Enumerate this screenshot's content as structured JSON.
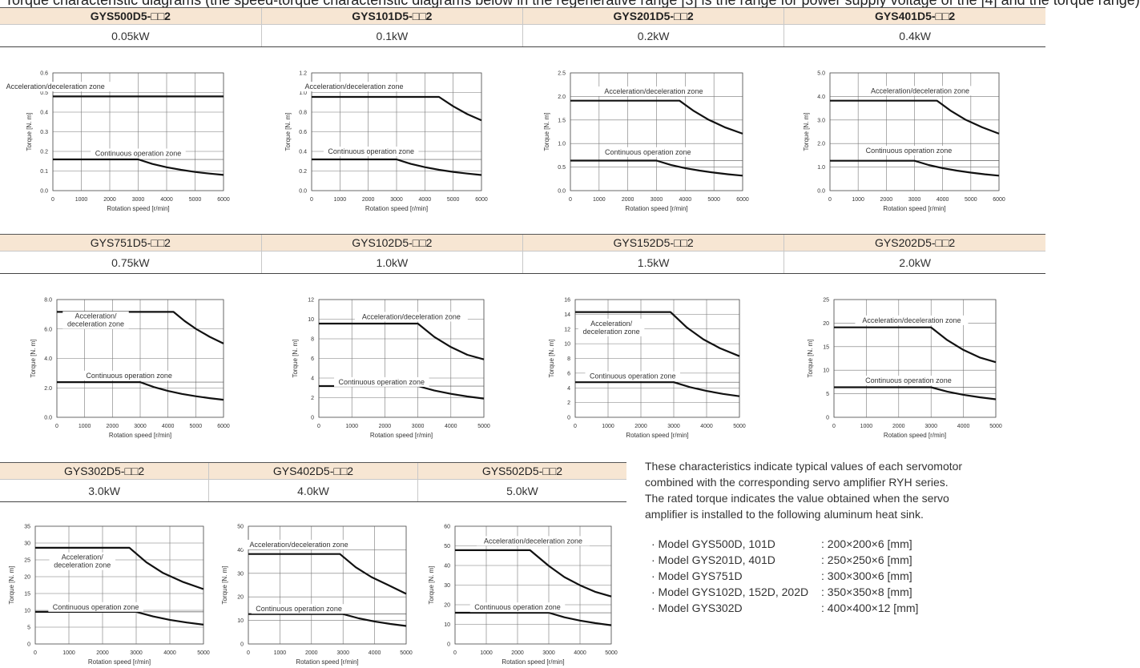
{
  "page_title": "Torque characteristic diagrams (the speed-torque characteristic diagrams below in the regenerative range [3] is the range for power supply voltage of the [4] and the torque range)",
  "tables": [
    {
      "id": "row1",
      "bold": true,
      "models": [
        "GYS500D5-□□2",
        "GYS101D5-□□2",
        "GYS201D5-□□2",
        "GYS401D5-□□2"
      ],
      "powers": [
        "0.05kW",
        "0.1kW",
        "0.2kW",
        "0.4kW"
      ]
    },
    {
      "id": "row2",
      "bold": false,
      "models": [
        "GYS751D5-□□2",
        "GYS102D5-□□2",
        "GYS152D5-□□2",
        "GYS202D5-□□2"
      ],
      "powers": [
        "0.75kW",
        "1.0kW",
        "1.5kW",
        "2.0kW"
      ]
    },
    {
      "id": "row3",
      "bold": false,
      "models": [
        "GYS302D5-□□2",
        "GYS402D5-□□2",
        "GYS502D5-□□2"
      ],
      "powers": [
        "3.0kW",
        "4.0kW",
        "5.0kW"
      ]
    }
  ],
  "chart_data": [
    {
      "type": "line",
      "xlabel": "Rotation speed [r/min]",
      "ylabel": "Torque [N. m]",
      "xlim": [
        0,
        6000
      ],
      "ylim": [
        0,
        0.6
      ],
      "xticks": [
        0,
        1000,
        2000,
        3000,
        4000,
        5000,
        6000
      ],
      "yticks": [
        "0.0",
        "0.1",
        "0.2",
        "0.3",
        "0.4",
        "0.5",
        "0.6"
      ],
      "series": [
        {
          "name": "Acceleration/deceleration zone",
          "points": [
            [
              0,
              0.48
            ],
            [
              3000,
              0.48
            ],
            [
              6000,
              0.48
            ]
          ]
        },
        {
          "name": "Continuous operation zone",
          "points": [
            [
              0,
              0.159
            ],
            [
              3000,
              0.159
            ],
            [
              3500,
              0.136
            ],
            [
              4000,
              0.119
            ],
            [
              4500,
              0.106
            ],
            [
              5000,
              0.095
            ],
            [
              5500,
              0.087
            ],
            [
              6000,
              0.08
            ]
          ]
        }
      ],
      "rated_line": 0.159
    },
    {
      "type": "line",
      "xlabel": "Rotation speed [r/min]",
      "ylabel": "Torque [N. m]",
      "xlim": [
        0,
        6000
      ],
      "ylim": [
        0,
        1.2
      ],
      "xticks": [
        0,
        1000,
        2000,
        3000,
        4000,
        5000,
        6000
      ],
      "yticks": [
        "0.0",
        "0.2",
        "0.4",
        "0.6",
        "0.8",
        "1.0",
        "1.2"
      ],
      "series": [
        {
          "name": "Acceleration/deceleration zone",
          "points": [
            [
              0,
              0.955
            ],
            [
              4500,
              0.955
            ],
            [
              5000,
              0.86
            ],
            [
              5500,
              0.78
            ],
            [
              6000,
              0.716
            ]
          ]
        },
        {
          "name": "Continuous operation zone",
          "points": [
            [
              0,
              0.318
            ],
            [
              3000,
              0.318
            ],
            [
              3500,
              0.273
            ],
            [
              4000,
              0.239
            ],
            [
              4500,
              0.212
            ],
            [
              5000,
              0.191
            ],
            [
              5500,
              0.174
            ],
            [
              6000,
              0.159
            ]
          ]
        }
      ],
      "rated_line": 0.318
    },
    {
      "type": "line",
      "xlabel": "Rotation speed [r/min]",
      "ylabel": "Torque [N. m]",
      "xlim": [
        0,
        6000
      ],
      "ylim": [
        0,
        2.5
      ],
      "xticks": [
        0,
        1000,
        2000,
        3000,
        4000,
        5000,
        6000
      ],
      "yticks": [
        "0.0",
        "0.5",
        "1.0",
        "1.5",
        "2.0",
        "2.5"
      ],
      "series": [
        {
          "name": "Acceleration/deceleration zone",
          "points": [
            [
              0,
              1.91
            ],
            [
              3800,
              1.91
            ],
            [
              4300,
              1.69
            ],
            [
              4800,
              1.51
            ],
            [
              5400,
              1.34
            ],
            [
              6000,
              1.21
            ]
          ]
        },
        {
          "name": "Continuous operation zone",
          "points": [
            [
              0,
              0.637
            ],
            [
              3000,
              0.637
            ],
            [
              3500,
              0.546
            ],
            [
              4000,
              0.478
            ],
            [
              4500,
              0.425
            ],
            [
              5000,
              0.382
            ],
            [
              5500,
              0.347
            ],
            [
              6000,
              0.318
            ]
          ]
        }
      ],
      "rated_line": 0.637
    },
    {
      "type": "line",
      "xlabel": "Rotation speed [r/min]",
      "ylabel": "Torque [N. m]",
      "xlim": [
        0,
        6000
      ],
      "ylim": [
        0,
        5.0
      ],
      "xticks": [
        0,
        1000,
        2000,
        3000,
        4000,
        5000,
        6000
      ],
      "yticks": [
        "0.0",
        "1.0",
        "2.0",
        "3.0",
        "4.0",
        "5.0"
      ],
      "series": [
        {
          "name": "Acceleration/deceleration zone",
          "points": [
            [
              0,
              3.82
            ],
            [
              3800,
              3.82
            ],
            [
              4300,
              3.38
            ],
            [
              4800,
              3.02
            ],
            [
              5400,
              2.69
            ],
            [
              6000,
              2.42
            ]
          ]
        },
        {
          "name": "Continuous operation zone",
          "points": [
            [
              0,
              1.27
            ],
            [
              3000,
              1.27
            ],
            [
              3500,
              1.09
            ],
            [
              4000,
              0.955
            ],
            [
              4500,
              0.849
            ],
            [
              5000,
              0.764
            ],
            [
              5500,
              0.695
            ],
            [
              6000,
              0.637
            ]
          ]
        }
      ],
      "rated_line": 1.27
    },
    {
      "type": "line",
      "xlabel": "Rotation speed [r/min]",
      "ylabel": "Torque [N. m]",
      "xlim": [
        0,
        6000
      ],
      "ylim": [
        0,
        8.0
      ],
      "xticks": [
        0,
        1000,
        2000,
        3000,
        4000,
        5000,
        6000
      ],
      "yticks": [
        "0.0",
        "2.0",
        "4.0",
        "6.0",
        "8.0"
      ],
      "series": [
        {
          "name": "Acceleration/deceleration zone",
          "points": [
            [
              0,
              7.16
            ],
            [
              4200,
              7.16
            ],
            [
              4600,
              6.54
            ],
            [
              5000,
              6.02
            ],
            [
              5500,
              5.47
            ],
            [
              6000,
              5.01
            ]
          ]
        },
        {
          "name": "Continuous operation zone",
          "points": [
            [
              0,
              2.39
            ],
            [
              3000,
              2.39
            ],
            [
              3500,
              2.05
            ],
            [
              4000,
              1.79
            ],
            [
              4500,
              1.59
            ],
            [
              5000,
              1.43
            ],
            [
              5500,
              1.3
            ],
            [
              6000,
              1.19
            ]
          ]
        }
      ],
      "rated_line": 2.39
    },
    {
      "type": "line",
      "xlabel": "Rotation speed [r/min]",
      "ylabel": "Torque [N. m]",
      "xlim": [
        0,
        5000
      ],
      "ylim": [
        0,
        12
      ],
      "xticks": [
        0,
        1000,
        2000,
        3000,
        4000,
        5000
      ],
      "yticks": [
        "0",
        "2",
        "4",
        "6",
        "8",
        "10",
        "12"
      ],
      "series": [
        {
          "name": "Acceleration/deceleration zone",
          "points": [
            [
              0,
              9.55
            ],
            [
              3000,
              9.55
            ],
            [
              3500,
              8.19
            ],
            [
              4000,
              7.16
            ],
            [
              4500,
              6.37
            ],
            [
              5000,
              5.9
            ]
          ]
        },
        {
          "name": "Continuous operation zone",
          "points": [
            [
              0,
              3.18
            ],
            [
              3000,
              3.18
            ],
            [
              3500,
              2.73
            ],
            [
              4000,
              2.39
            ],
            [
              4500,
              2.12
            ],
            [
              5000,
              1.91
            ]
          ]
        }
      ],
      "rated_line": 3.18
    },
    {
      "type": "line",
      "xlabel": "Rotation speed [r/min]",
      "ylabel": "Torque [N. m]",
      "xlim": [
        0,
        5000
      ],
      "ylim": [
        0,
        16
      ],
      "xticks": [
        0,
        1000,
        2000,
        3000,
        4000,
        5000
      ],
      "yticks": [
        "0",
        "2",
        "4",
        "6",
        "8",
        "10",
        "12",
        "14",
        "16"
      ],
      "series": [
        {
          "name": "Acceleration/deceleration zone",
          "points": [
            [
              0,
              14.3
            ],
            [
              2900,
              14.3
            ],
            [
              3400,
              12.2
            ],
            [
              3900,
              10.6
            ],
            [
              4400,
              9.4
            ],
            [
              5000,
              8.3
            ]
          ]
        },
        {
          "name": "Continuous operation zone",
          "points": [
            [
              0,
              4.77
            ],
            [
              3000,
              4.77
            ],
            [
              3500,
              4.09
            ],
            [
              4000,
              3.58
            ],
            [
              4500,
              3.18
            ],
            [
              5000,
              2.86
            ]
          ]
        }
      ],
      "rated_line": 4.77
    },
    {
      "type": "line",
      "xlabel": "Rotation speed [r/min]",
      "ylabel": "Torque [N. m]",
      "xlim": [
        0,
        5000
      ],
      "ylim": [
        0,
        25
      ],
      "xticks": [
        0,
        1000,
        2000,
        3000,
        4000,
        5000
      ],
      "yticks": [
        "0",
        "5",
        "10",
        "15",
        "20",
        "25"
      ],
      "series": [
        {
          "name": "Acceleration/deceleration zone",
          "points": [
            [
              0,
              19.1
            ],
            [
              3000,
              19.1
            ],
            [
              3500,
              16.4
            ],
            [
              4000,
              14.3
            ],
            [
              4500,
              12.7
            ],
            [
              5000,
              11.7
            ]
          ]
        },
        {
          "name": "Continuous operation zone",
          "points": [
            [
              0,
              6.37
            ],
            [
              3000,
              6.37
            ],
            [
              3500,
              5.46
            ],
            [
              4000,
              4.78
            ],
            [
              4500,
              4.25
            ],
            [
              5000,
              3.82
            ]
          ]
        }
      ],
      "rated_line": 6.37
    },
    {
      "type": "line",
      "xlabel": "Rotation speed [r/min]",
      "ylabel": "Torque [N. m]",
      "xlim": [
        0,
        5000
      ],
      "ylim": [
        0,
        35
      ],
      "xticks": [
        0,
        1000,
        2000,
        3000,
        4000,
        5000
      ],
      "yticks": [
        "0",
        "5",
        "10",
        "15",
        "20",
        "25",
        "30",
        "35"
      ],
      "series": [
        {
          "name": "Acceleration/deceleration zone",
          "points": [
            [
              0,
              28.6
            ],
            [
              2800,
              28.6
            ],
            [
              3300,
              24.3
            ],
            [
              3800,
              21.1
            ],
            [
              4400,
              18.4
            ],
            [
              5000,
              16.3
            ]
          ]
        },
        {
          "name": "Continuous operation zone",
          "points": [
            [
              0,
              9.55
            ],
            [
              3000,
              9.55
            ],
            [
              3500,
              8.19
            ],
            [
              4000,
              7.16
            ],
            [
              4500,
              6.37
            ],
            [
              5000,
              5.73
            ]
          ]
        }
      ],
      "rated_line": 9.55
    },
    {
      "type": "line",
      "xlabel": "Rotation speed [r/min]",
      "ylabel": "Torque [N. m]",
      "xlim": [
        0,
        5000
      ],
      "ylim": [
        0,
        50
      ],
      "xticks": [
        0,
        1000,
        2000,
        3000,
        4000,
        5000
      ],
      "yticks": [
        "0",
        "10",
        "20",
        "30",
        "40",
        "50"
      ],
      "series": [
        {
          "name": "Acceleration/deceleration zone",
          "points": [
            [
              0,
              38.2
            ],
            [
              2900,
              38.2
            ],
            [
              3400,
              32.6
            ],
            [
              3900,
              28.4
            ],
            [
              4400,
              25.2
            ],
            [
              5000,
              21.3
            ]
          ]
        },
        {
          "name": "Continuous operation zone",
          "points": [
            [
              0,
              12.7
            ],
            [
              3000,
              12.7
            ],
            [
              3500,
              10.9
            ],
            [
              4000,
              9.55
            ],
            [
              4500,
              8.49
            ],
            [
              5000,
              7.64
            ]
          ]
        }
      ],
      "rated_line": 12.7
    },
    {
      "type": "line",
      "xlabel": "Rotation speed [r/min]",
      "ylabel": "Torque [N. m]",
      "xlim": [
        0,
        5000
      ],
      "ylim": [
        0,
        60
      ],
      "xticks": [
        0,
        1000,
        2000,
        3000,
        4000,
        5000
      ],
      "yticks": [
        "0",
        "10",
        "20",
        "30",
        "40",
        "50",
        "60"
      ],
      "series": [
        {
          "name": "Acceleration/deceleration zone",
          "points": [
            [
              0,
              47.8
            ],
            [
              2400,
              47.8
            ],
            [
              3000,
              39.8
            ],
            [
              3500,
              34.1
            ],
            [
              4000,
              29.9
            ],
            [
              4500,
              26.5
            ],
            [
              5000,
              24.2
            ]
          ]
        },
        {
          "name": "Continuous operation zone",
          "points": [
            [
              0,
              15.9
            ],
            [
              3000,
              15.9
            ],
            [
              3500,
              13.6
            ],
            [
              4000,
              11.9
            ],
            [
              4500,
              10.6
            ],
            [
              5000,
              9.55
            ]
          ]
        }
      ],
      "rated_line": 15.9
    }
  ],
  "note": {
    "lines": [
      "These characteristics indicate typical values of each servomotor",
      "combined with the corresponding servo amplifier RYH series.",
      "The rated torque indicates the value obtained when the servo",
      "amplifier is installed to the following aluminum heat sink."
    ],
    "heat_sinks": [
      {
        "model": "· Model GYS500D, 101D",
        "size": ": 200×200×6 [mm]"
      },
      {
        "model": "· Model GYS201D, 401D",
        "size": ": 250×250×6 [mm]"
      },
      {
        "model": "· Model GYS751D",
        "size": ": 300×300×6 [mm]"
      },
      {
        "model": "· Model GYS102D, 152D, 202D",
        "size": ": 350×350×8 [mm]"
      },
      {
        "model": "· Model GYS302D",
        "size": ": 400×400×12 [mm]"
      }
    ]
  }
}
